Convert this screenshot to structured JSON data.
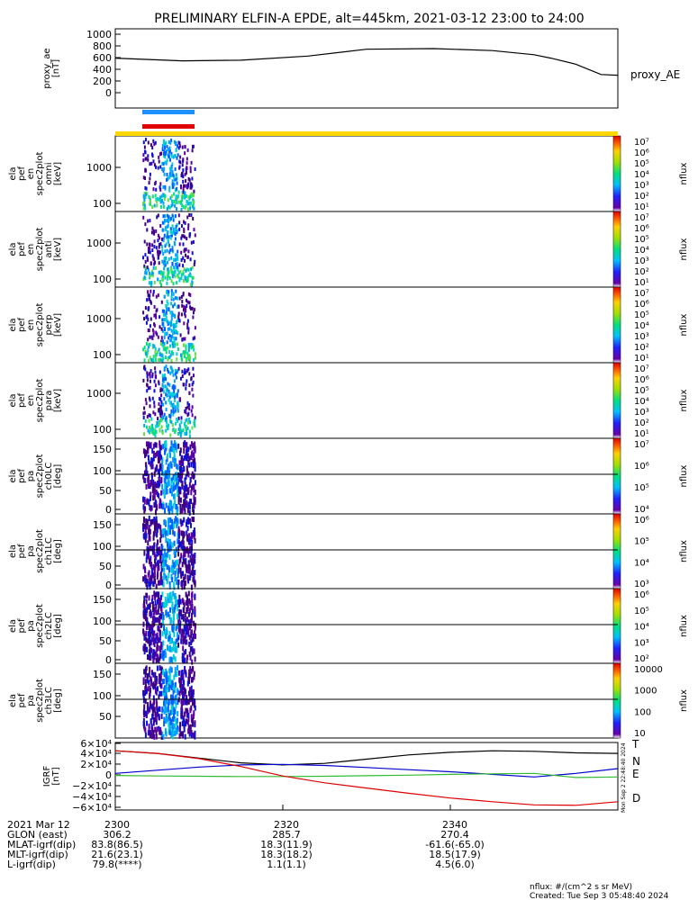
{
  "title": "PRELIMINARY ELFIN-A EPDE, alt=445km, 2021-03-12 23:00 to 24:00",
  "colors": {
    "ae": "#000000",
    "bar_blue": "#1e90ff",
    "bar_red": "#e00000",
    "bar_yellow": "#ffd700",
    "igrf_T": "#000000",
    "igrf_N": "#0000cc",
    "igrf_E": "#33bb33",
    "igrf_D": "#dd0000"
  },
  "panels": [
    {
      "id": "ae",
      "ylabel": [
        "proxy_ae",
        "[nT]"
      ],
      "ticks": [
        "1000",
        "800",
        "600",
        "400",
        "200",
        "0"
      ],
      "right_label": "proxy_AE"
    },
    {
      "id": "omni",
      "ylabel": [
        "ela",
        "pef",
        "en",
        "spec2plot",
        "omni",
        "[keV]"
      ],
      "ticks": [
        "1000",
        "100"
      ],
      "cb_ticks": [
        "10⁷",
        "10⁶",
        "10⁵",
        "10⁴",
        "10³",
        "10²",
        "10¹"
      ],
      "cb_label": "nflux"
    },
    {
      "id": "anti",
      "ylabel": [
        "ela",
        "pef",
        "en",
        "spec2plot",
        "anti",
        "[keV]"
      ],
      "ticks": [
        "1000",
        "100"
      ],
      "cb_ticks": [
        "10⁷",
        "10⁶",
        "10⁵",
        "10⁴",
        "10³",
        "10²",
        "10¹"
      ],
      "cb_label": "nflux"
    },
    {
      "id": "perp",
      "ylabel": [
        "ela",
        "pef",
        "en",
        "spec2plot",
        "perp",
        "[keV]"
      ],
      "ticks": [
        "1000",
        "100"
      ],
      "cb_ticks": [
        "10⁷",
        "10⁶",
        "10⁵",
        "10⁴",
        "10³",
        "10²",
        "10¹"
      ],
      "cb_label": "nflux"
    },
    {
      "id": "para",
      "ylabel": [
        "ela",
        "pef",
        "en",
        "spec2plot",
        "para",
        "[keV]"
      ],
      "ticks": [
        "1000",
        "100"
      ],
      "cb_ticks": [
        "10⁷",
        "10⁶",
        "10⁵",
        "10⁴",
        "10³",
        "10²",
        "10¹"
      ],
      "cb_label": "nflux"
    },
    {
      "id": "ch0",
      "ylabel": [
        "ela",
        "pef",
        "pa",
        "spec2plot",
        "ch0LC",
        "[deg]"
      ],
      "ticks": [
        "150",
        "100",
        "50",
        "0"
      ],
      "cb_ticks": [
        "10⁷",
        "10⁶",
        "10⁵",
        "10⁴"
      ],
      "cb_label": "nflux"
    },
    {
      "id": "ch1",
      "ylabel": [
        "ela",
        "pef",
        "pa",
        "spec2plot",
        "ch1LC",
        "[deg]"
      ],
      "ticks": [
        "150",
        "100",
        "50",
        "0"
      ],
      "cb_ticks": [
        "10⁶",
        "10⁵",
        "10⁴",
        "10³"
      ],
      "cb_label": "nflux"
    },
    {
      "id": "ch2",
      "ylabel": [
        "ela",
        "pef",
        "pa",
        "spec2plot",
        "ch2LC",
        "[deg]"
      ],
      "ticks": [
        "150",
        "100",
        "50",
        "0"
      ],
      "cb_ticks": [
        "10⁶",
        "10⁵",
        "10⁴",
        "10³",
        "10²"
      ],
      "cb_label": "nflux"
    },
    {
      "id": "ch3",
      "ylabel": [
        "ela",
        "pef",
        "pa",
        "spec2plot",
        "ch3LC",
        "[deg]"
      ],
      "ticks": [
        "150",
        "100",
        "50"
      ],
      "cb_ticks": [
        "10000",
        "1000",
        "100",
        "10"
      ],
      "cb_label": "nflux"
    },
    {
      "id": "igrf",
      "ylabel": [
        "IGRF",
        "[nT]"
      ],
      "ticks": [
        "6×10⁴",
        "4×10⁴",
        "2×10⁴",
        "0",
        "−2×10⁴",
        "−4×10⁴",
        "−6×10⁴"
      ],
      "legend": [
        "T",
        "N",
        "E",
        "D"
      ]
    }
  ],
  "chart_data": {
    "type": "heatmap",
    "title": "PRELIMINARY ELFIN-A EPDE, alt=445km, 2021-03-12 23:00 to 24:00",
    "x_ticks": [
      "2300",
      "2320",
      "2340"
    ],
    "xlim": [
      "23:00",
      "24:00"
    ],
    "proxy_ae": {
      "ylim": [
        0,
        1000
      ],
      "x_min": [
        0,
        8,
        15,
        23,
        30,
        38,
        45,
        50,
        52,
        55,
        58,
        60
      ],
      "values": [
        650,
        610,
        620,
        680,
        780,
        790,
        760,
        700,
        650,
        560,
        410,
        400
      ]
    },
    "science_zone_minutes": [
      2.5,
      7.0
    ],
    "igrf": {
      "ylim": [
        -60000,
        60000
      ],
      "x_min": [
        0,
        5,
        10,
        15,
        20,
        25,
        30,
        35,
        40,
        45,
        50,
        55,
        60
      ],
      "series": [
        {
          "name": "T",
          "values": [
            46000,
            41000,
            32000,
            23000,
            19000,
            22000,
            30000,
            38000,
            43000,
            46000,
            45000,
            42000,
            41000
          ]
        },
        {
          "name": "N",
          "values": [
            3000,
            9000,
            15000,
            19000,
            20000,
            18000,
            14000,
            10000,
            6000,
            1000,
            -4000,
            3000,
            12000
          ]
        },
        {
          "name": "E",
          "values": [
            -1000,
            -2000,
            -2500,
            -3000,
            -3000,
            -2500,
            -1500,
            -500,
            1000,
            2000,
            3000,
            -5000,
            -4000
          ]
        },
        {
          "name": "D",
          "values": [
            46000,
            41000,
            31000,
            16000,
            -2000,
            -15000,
            -25000,
            -35000,
            -44000,
            -51000,
            -57000,
            -58000,
            -51000
          ]
        }
      ]
    }
  },
  "ephem": {
    "rows": [
      {
        "label": "2021 Mar 12",
        "v": [
          "2300",
          "2320",
          "2340"
        ]
      },
      {
        "label": "GLON (east)",
        "v": [
          "306.2",
          "285.7",
          "270.4"
        ]
      },
      {
        "label": "MLAT-igrf(dip)",
        "v": [
          "83.8(86.5)",
          "18.3(11.9)",
          "-61.6(-65.0)"
        ]
      },
      {
        "label": "MLT-igrf(dip)",
        "v": [
          "21.6(23.1)",
          "18.3(18.2)",
          "18.5(17.9)"
        ]
      },
      {
        "label": "L-igrf(dip)",
        "v": [
          "79.8(****)",
          "1.1(1.1)",
          "4.5(6.0)"
        ]
      }
    ]
  },
  "footer": {
    "units": "nflux: #/(cm^2 s sr MeV)",
    "created": "Created: Tue Sep  3 05:48:40 2024",
    "stamp": "Mon Sep  2 22:48:40 2024"
  }
}
